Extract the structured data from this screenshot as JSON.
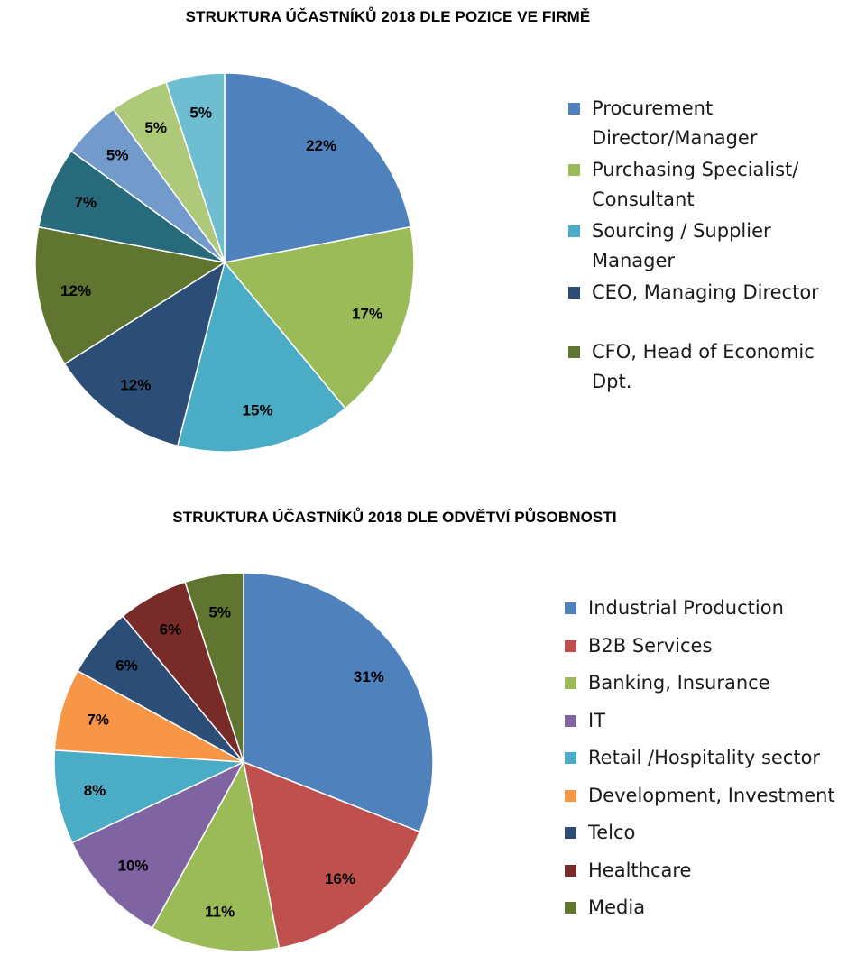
{
  "chart_data": [
    {
      "type": "pie",
      "title": "STRUKTURA ÚČASTNÍKŮ 2018 DLE POZICE VE FIRMĚ",
      "categories": [
        "Procurement Director/Manager",
        "Purchasing Specialist/ Consultant",
        "Sourcing / Supplier Manager",
        "CEO, Managing Director",
        "CFO, Head of Economic Dpt.",
        "",
        "",
        "",
        ""
      ],
      "values": [
        22,
        17,
        15,
        12,
        12,
        7,
        5,
        5,
        5
      ],
      "labels": [
        "22%",
        "17%",
        "15%",
        "12%",
        "12%",
        "7%",
        "5%",
        "5%",
        "5%"
      ],
      "colors": [
        "#4f81bd",
        "#9bbb59",
        "#4bacc6",
        "#2c4d75",
        "#5f7530",
        "#276a7c",
        "#729aca",
        "#afc97a",
        "#6fbdd1"
      ],
      "legend_placement": "right"
    },
    {
      "type": "pie",
      "title": "STRUKTURA ÚČASTNÍKŮ 2018 DLE ODVĚTVÍ PŮSOBNOSTI",
      "categories": [
        "Industrial Production",
        "B2B Services",
        "Banking,  Insurance",
        "IT",
        "Retail /Hospitality sector",
        "Development, Investment",
        "Telco",
        "Healthcare",
        "Media"
      ],
      "values": [
        31,
        16,
        11,
        10,
        8,
        7,
        6,
        6,
        5
      ],
      "labels": [
        "31%",
        "16%",
        "11%",
        "10%",
        "8%",
        "7%",
        "6%",
        "6%",
        "5%"
      ],
      "colors": [
        "#4f81bd",
        "#c0504d",
        "#9bbb59",
        "#8064a2",
        "#4bacc6",
        "#f79646",
        "#2c4d75",
        "#772c2a",
        "#5f7530"
      ],
      "legend_placement": "right"
    }
  ]
}
